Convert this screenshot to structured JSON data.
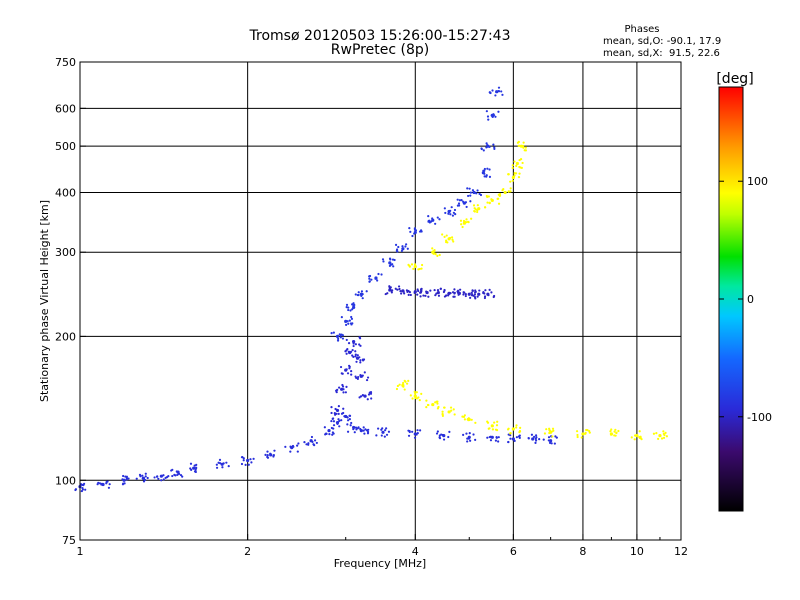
{
  "chart_data": {
    "type": "scatter",
    "title": "Tromsø 20120503 15:26:00-15:27:43",
    "subtitle": "RwPretec (8p)",
    "xlabel": "Frequency [MHz]",
    "ylabel": "Stationary phase Virtual Height [km]",
    "x_scale": "log",
    "y_scale": "log",
    "xlim": [
      1,
      12
    ],
    "ylim": [
      75,
      750
    ],
    "x_ticks": [
      1,
      2,
      4,
      6,
      8,
      10,
      12
    ],
    "y_ticks": [
      75,
      100,
      200,
      300,
      400,
      500,
      600,
      750
    ],
    "grid": true,
    "stats": {
      "heading": "Phases",
      "line_o": "mean, sd,O: -90.1, 17.9",
      "line_x": "mean, sd,X:  91.5, 22.6"
    },
    "colorbar": {
      "label": "[deg]",
      "min": -180,
      "max": 180,
      "ticks": [
        -100,
        0,
        100
      ],
      "tick_labels": [
        "-100",
        "0",
        "100"
      ]
    },
    "series": [
      {
        "name": "O-mode lower trace (blue)",
        "phase": -90,
        "x": [
          1.0,
          1.1,
          1.2,
          1.3,
          1.4,
          1.5,
          1.6,
          1.8,
          2.0,
          2.2,
          2.4,
          2.6,
          2.8,
          2.9,
          3.0,
          3.1,
          3.2,
          3.5,
          4.0,
          4.5,
          5.0,
          5.5,
          6.0,
          6.5,
          7.0
        ],
        "y": [
          97,
          98,
          100,
          101,
          102,
          104,
          106,
          108,
          110,
          113,
          117,
          121,
          127,
          132,
          136,
          129,
          127,
          126,
          125,
          124,
          123,
          123,
          122,
          122,
          121
        ]
      },
      {
        "name": "O-mode E cusp (blue)",
        "phase": -95,
        "x": [
          2.9,
          2.95,
          3.0,
          3.05,
          3.1,
          3.15,
          3.2,
          3.25
        ],
        "y": [
          140,
          155,
          170,
          185,
          195,
          180,
          165,
          150
        ]
      },
      {
        "name": "O-mode F trace (blue)",
        "phase": -85,
        "x": [
          2.9,
          3.0,
          3.1,
          3.2,
          3.4,
          3.6,
          3.8,
          4.0,
          4.3,
          4.6,
          4.9,
          5.1,
          5.3,
          5.4,
          5.5,
          5.6
        ],
        "y": [
          200,
          215,
          230,
          245,
          265,
          285,
          305,
          330,
          350,
          365,
          380,
          400,
          440,
          500,
          580,
          650
        ]
      },
      {
        "name": "O-mode plateau (blue)",
        "phase": -100,
        "x": [
          3.6,
          3.8,
          4.0,
          4.2,
          4.4,
          4.6,
          4.8,
          5.0,
          5.2,
          5.4
        ],
        "y": [
          250,
          249,
          248,
          247,
          247,
          246,
          246,
          245,
          245,
          245
        ]
      },
      {
        "name": "X-mode lower trace (yellow)",
        "phase": 90,
        "x": [
          3.8,
          4.0,
          4.3,
          4.6,
          5.0,
          5.5,
          6.0,
          7.0,
          8.0,
          9.0,
          10.0,
          11.0
        ],
        "y": [
          158,
          150,
          144,
          139,
          134,
          130,
          128,
          126,
          125,
          125,
          124,
          124
        ]
      },
      {
        "name": "X-mode F trace (yellow)",
        "phase": 90,
        "x": [
          4.0,
          4.3,
          4.6,
          4.9,
          5.2,
          5.5,
          5.8,
          6.0,
          6.1,
          6.2
        ],
        "y": [
          280,
          300,
          320,
          345,
          370,
          385,
          400,
          430,
          460,
          500
        ]
      }
    ]
  }
}
